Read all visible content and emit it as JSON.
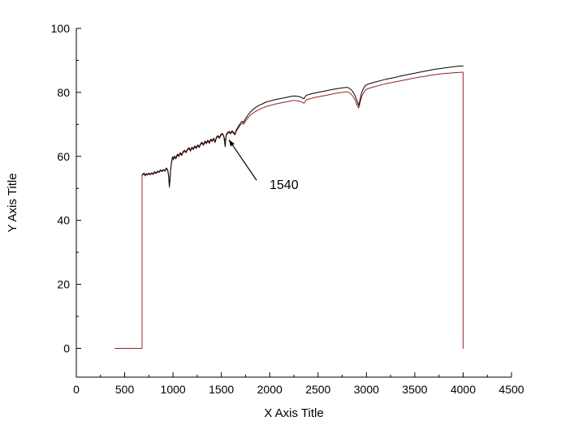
{
  "figure": {
    "background": "#ffffff",
    "axis_color": "#000000",
    "text_color": "#000000"
  },
  "chart_data": {
    "type": "line",
    "title": "",
    "xlabel": "X Axis Title",
    "ylabel": "Y Axis Title",
    "xlim": [
      0,
      4500
    ],
    "ylim": [
      -9,
      100
    ],
    "x_major_ticks": [
      0,
      500,
      1000,
      1500,
      2000,
      2500,
      3000,
      3500,
      4000,
      4500
    ],
    "y_major_ticks": [
      0,
      20,
      40,
      60,
      80,
      100
    ],
    "x_minor_step": 250,
    "y_minor_step": 10,
    "grid": false,
    "legend": null,
    "annotation": {
      "text": "1540",
      "text_xy": [
        1995,
        50.5
      ],
      "arrow_from_xy": [
        1865,
        52.5
      ],
      "arrow_tip_xy": [
        1578,
        65.2
      ]
    },
    "series": [
      {
        "name": "series-red",
        "color": "#992222",
        "points": [
          [
            400,
            0
          ],
          [
            670,
            0
          ],
          [
            680,
            0
          ],
          [
            680,
            54
          ],
          [
            690,
            54.3
          ],
          [
            700,
            54.6
          ],
          [
            710,
            53.9
          ],
          [
            720,
            54.4
          ],
          [
            735,
            54.1
          ],
          [
            750,
            54.6
          ],
          [
            765,
            54.2
          ],
          [
            780,
            54.7
          ],
          [
            795,
            54.3
          ],
          [
            810,
            55.0
          ],
          [
            825,
            54.6
          ],
          [
            840,
            55.2
          ],
          [
            855,
            54.9
          ],
          [
            870,
            55.6
          ],
          [
            885,
            55.2
          ],
          [
            900,
            55.7
          ],
          [
            915,
            55.3
          ],
          [
            930,
            56.2
          ],
          [
            945,
            55.6
          ],
          [
            955,
            53.5
          ],
          [
            962,
            50.3
          ],
          [
            968,
            52.5
          ],
          [
            975,
            55.5
          ],
          [
            985,
            58.0
          ],
          [
            995,
            59.6
          ],
          [
            1005,
            58.9
          ],
          [
            1015,
            59.8
          ],
          [
            1030,
            59.2
          ],
          [
            1045,
            60.4
          ],
          [
            1060,
            59.9
          ],
          [
            1075,
            60.9
          ],
          [
            1090,
            60.2
          ],
          [
            1105,
            61.2
          ],
          [
            1120,
            61.6
          ],
          [
            1135,
            61.1
          ],
          [
            1150,
            62.0
          ],
          [
            1165,
            62.4
          ],
          [
            1180,
            61.6
          ],
          [
            1195,
            62.6
          ],
          [
            1210,
            62.1
          ],
          [
            1225,
            63.0
          ],
          [
            1240,
            62.4
          ],
          [
            1255,
            63.3
          ],
          [
            1270,
            62.7
          ],
          [
            1285,
            63.7
          ],
          [
            1300,
            64.1
          ],
          [
            1315,
            63.4
          ],
          [
            1330,
            64.5
          ],
          [
            1345,
            63.9
          ],
          [
            1360,
            64.8
          ],
          [
            1375,
            64.0
          ],
          [
            1390,
            65.1
          ],
          [
            1405,
            64.6
          ],
          [
            1420,
            65.4
          ],
          [
            1435,
            64.3
          ],
          [
            1450,
            65.8
          ],
          [
            1465,
            66.2
          ],
          [
            1480,
            65.6
          ],
          [
            1495,
            66.6
          ],
          [
            1510,
            66.9
          ],
          [
            1525,
            66.3
          ],
          [
            1540,
            64.9
          ],
          [
            1550,
            66.5
          ],
          [
            1565,
            67.2
          ],
          [
            1580,
            67.5
          ],
          [
            1595,
            67.0
          ],
          [
            1610,
            67.7
          ],
          [
            1625,
            67.2
          ],
          [
            1640,
            66.7
          ],
          [
            1655,
            67.9
          ],
          [
            1670,
            68.6
          ],
          [
            1685,
            69.3
          ],
          [
            1700,
            69.9
          ],
          [
            1715,
            70.4
          ],
          [
            1730,
            70.0
          ],
          [
            1745,
            70.8
          ],
          [
            1760,
            71.4
          ],
          [
            1780,
            72.2
          ],
          [
            1800,
            72.9
          ],
          [
            1825,
            73.5
          ],
          [
            1850,
            74.0
          ],
          [
            1875,
            74.4
          ],
          [
            1900,
            74.8
          ],
          [
            1925,
            75.1
          ],
          [
            1950,
            75.4
          ],
          [
            1975,
            75.7
          ],
          [
            2000,
            75.9
          ],
          [
            2050,
            76.3
          ],
          [
            2100,
            76.6
          ],
          [
            2150,
            76.9
          ],
          [
            2200,
            77.2
          ],
          [
            2250,
            77.5
          ],
          [
            2300,
            77.3
          ],
          [
            2330,
            77.0
          ],
          [
            2355,
            76.6
          ],
          [
            2375,
            77.6
          ],
          [
            2400,
            77.9
          ],
          [
            2450,
            78.3
          ],
          [
            2500,
            78.6
          ],
          [
            2550,
            78.9
          ],
          [
            2600,
            79.2
          ],
          [
            2650,
            79.5
          ],
          [
            2700,
            79.8
          ],
          [
            2750,
            80.0
          ],
          [
            2800,
            80.2
          ],
          [
            2830,
            79.8
          ],
          [
            2855,
            79.0
          ],
          [
            2880,
            77.8
          ],
          [
            2905,
            75.9
          ],
          [
            2920,
            75.1
          ],
          [
            2935,
            76.8
          ],
          [
            2950,
            78.6
          ],
          [
            2970,
            79.9
          ],
          [
            2990,
            80.7
          ],
          [
            3010,
            81.1
          ],
          [
            3050,
            81.5
          ],
          [
            3100,
            81.9
          ],
          [
            3150,
            82.3
          ],
          [
            3200,
            82.7
          ],
          [
            3250,
            83.0
          ],
          [
            3300,
            83.3
          ],
          [
            3350,
            83.6
          ],
          [
            3400,
            83.9
          ],
          [
            3450,
            84.2
          ],
          [
            3500,
            84.5
          ],
          [
            3550,
            84.8
          ],
          [
            3600,
            85.0
          ],
          [
            3650,
            85.3
          ],
          [
            3700,
            85.5
          ],
          [
            3750,
            85.7
          ],
          [
            3800,
            85.9
          ],
          [
            3850,
            86.0
          ],
          [
            3900,
            86.1
          ],
          [
            3950,
            86.2
          ],
          [
            4000,
            86.3
          ],
          [
            4000,
            0
          ]
        ]
      },
      {
        "name": "series-black",
        "color": "#000000",
        "points": [
          [
            680,
            54.2
          ],
          [
            690,
            54.5
          ],
          [
            700,
            54.8
          ],
          [
            710,
            54.1
          ],
          [
            720,
            54.6
          ],
          [
            735,
            54.3
          ],
          [
            750,
            54.8
          ],
          [
            765,
            54.4
          ],
          [
            780,
            54.9
          ],
          [
            795,
            54.5
          ],
          [
            810,
            55.2
          ],
          [
            825,
            54.8
          ],
          [
            840,
            55.4
          ],
          [
            855,
            55.1
          ],
          [
            870,
            55.8
          ],
          [
            885,
            55.4
          ],
          [
            900,
            55.9
          ],
          [
            915,
            55.5
          ],
          [
            930,
            56.4
          ],
          [
            945,
            55.8
          ],
          [
            955,
            53.8
          ],
          [
            962,
            50.7
          ],
          [
            968,
            52.9
          ],
          [
            975,
            55.8
          ],
          [
            985,
            58.3
          ],
          [
            995,
            59.9
          ],
          [
            1005,
            59.2
          ],
          [
            1015,
            60.1
          ],
          [
            1030,
            59.5
          ],
          [
            1045,
            60.7
          ],
          [
            1060,
            60.2
          ],
          [
            1075,
            61.2
          ],
          [
            1090,
            60.5
          ],
          [
            1105,
            61.5
          ],
          [
            1120,
            61.9
          ],
          [
            1135,
            61.4
          ],
          [
            1150,
            62.3
          ],
          [
            1165,
            62.7
          ],
          [
            1180,
            61.9
          ],
          [
            1195,
            62.9
          ],
          [
            1210,
            62.4
          ],
          [
            1225,
            63.3
          ],
          [
            1240,
            62.7
          ],
          [
            1255,
            63.6
          ],
          [
            1270,
            63.0
          ],
          [
            1285,
            64.0
          ],
          [
            1300,
            64.4
          ],
          [
            1315,
            63.7
          ],
          [
            1330,
            64.8
          ],
          [
            1345,
            64.2
          ],
          [
            1360,
            65.1
          ],
          [
            1375,
            64.3
          ],
          [
            1390,
            65.4
          ],
          [
            1405,
            64.9
          ],
          [
            1420,
            65.7
          ],
          [
            1435,
            64.6
          ],
          [
            1450,
            66.1
          ],
          [
            1465,
            66.5
          ],
          [
            1480,
            65.9
          ],
          [
            1495,
            66.9
          ],
          [
            1510,
            67.2
          ],
          [
            1525,
            66.4
          ],
          [
            1540,
            63.0
          ],
          [
            1550,
            66.8
          ],
          [
            1565,
            67.5
          ],
          [
            1580,
            67.8
          ],
          [
            1595,
            67.3
          ],
          [
            1610,
            68.0
          ],
          [
            1625,
            67.5
          ],
          [
            1640,
            67.0
          ],
          [
            1655,
            68.3
          ],
          [
            1670,
            69.0
          ],
          [
            1685,
            69.8
          ],
          [
            1700,
            70.5
          ],
          [
            1715,
            71.0
          ],
          [
            1730,
            70.6
          ],
          [
            1745,
            71.5
          ],
          [
            1760,
            72.2
          ],
          [
            1780,
            73.1
          ],
          [
            1800,
            73.9
          ],
          [
            1825,
            74.6
          ],
          [
            1850,
            75.2
          ],
          [
            1875,
            75.7
          ],
          [
            1900,
            76.1
          ],
          [
            1925,
            76.4
          ],
          [
            1950,
            76.8
          ],
          [
            1975,
            77.1
          ],
          [
            2000,
            77.3
          ],
          [
            2050,
            77.7
          ],
          [
            2100,
            78.0
          ],
          [
            2150,
            78.3
          ],
          [
            2200,
            78.6
          ],
          [
            2250,
            78.9
          ],
          [
            2300,
            78.7
          ],
          [
            2330,
            78.4
          ],
          [
            2355,
            78.0
          ],
          [
            2375,
            79.0
          ],
          [
            2400,
            79.3
          ],
          [
            2450,
            79.7
          ],
          [
            2500,
            80.0
          ],
          [
            2550,
            80.3
          ],
          [
            2600,
            80.6
          ],
          [
            2650,
            80.9
          ],
          [
            2700,
            81.2
          ],
          [
            2750,
            81.4
          ],
          [
            2800,
            81.6
          ],
          [
            2830,
            81.2
          ],
          [
            2855,
            80.4
          ],
          [
            2880,
            79.2
          ],
          [
            2905,
            77.2
          ],
          [
            2920,
            75.9
          ],
          [
            2935,
            77.9
          ],
          [
            2950,
            79.9
          ],
          [
            2970,
            81.3
          ],
          [
            2990,
            82.1
          ],
          [
            3010,
            82.5
          ],
          [
            3050,
            82.9
          ],
          [
            3100,
            83.3
          ],
          [
            3150,
            83.7
          ],
          [
            3200,
            84.1
          ],
          [
            3250,
            84.4
          ],
          [
            3300,
            84.7
          ],
          [
            3350,
            85.1
          ],
          [
            3400,
            85.4
          ],
          [
            3450,
            85.7
          ],
          [
            3500,
            86.0
          ],
          [
            3550,
            86.3
          ],
          [
            3600,
            86.6
          ],
          [
            3650,
            86.9
          ],
          [
            3700,
            87.2
          ],
          [
            3750,
            87.4
          ],
          [
            3800,
            87.6
          ],
          [
            3850,
            87.8
          ],
          [
            3900,
            88.0
          ],
          [
            3950,
            88.2
          ],
          [
            4000,
            88.3
          ]
        ]
      }
    ]
  }
}
